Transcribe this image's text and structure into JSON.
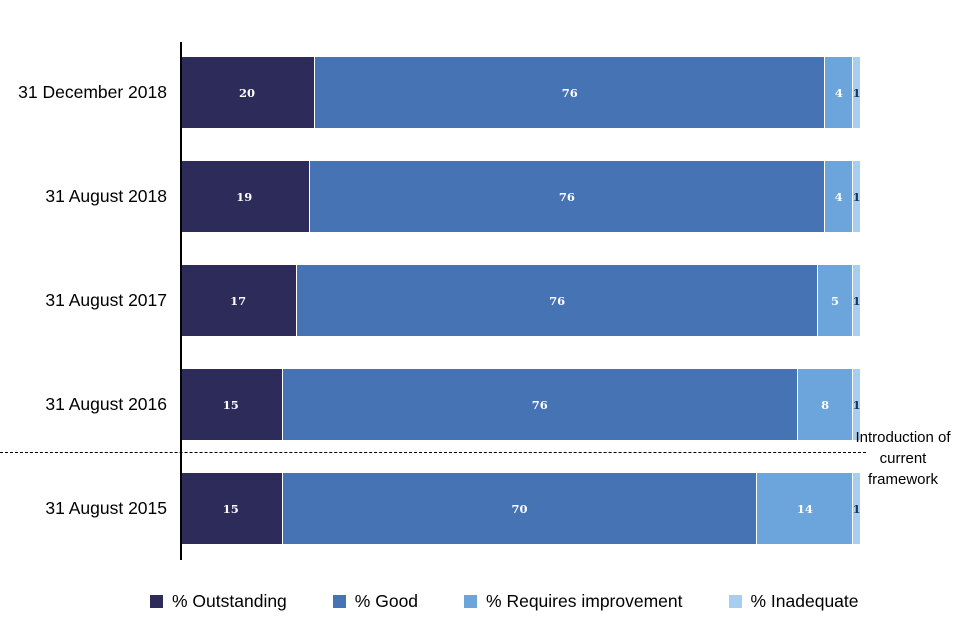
{
  "chart_data": {
    "type": "bar",
    "variant": "stacked-horizontal-100",
    "title": "",
    "xlabel": "",
    "ylabel": "",
    "categories": [
      "31 December 2018",
      "31 August 2018",
      "31 August 2017",
      "31 August 2016",
      "31 August 2015"
    ],
    "series": [
      {
        "name": "% Outstanding",
        "color": "#2D2B5A",
        "value_label_color": "#FFFFFF",
        "values": [
          20,
          19,
          17,
          15,
          15
        ]
      },
      {
        "name": "% Good",
        "color": "#4573B4",
        "value_label_color": "#FFFFFF",
        "values": [
          76,
          76,
          76,
          76,
          70
        ]
      },
      {
        "name": "% Requires improvement",
        "color": "#6BA5DB",
        "value_label_color": "#FFFFFF",
        "values": [
          4,
          4,
          5,
          8,
          14
        ]
      },
      {
        "name": "% Inadequate",
        "color": "#A8CDEE",
        "value_label_color": "#17365D",
        "values": [
          1,
          1,
          1,
          1,
          1
        ]
      }
    ],
    "annotation": {
      "text": "Introduction of current framework",
      "divider_after_category": "31 August 2016",
      "divider_style": "dashed"
    },
    "legend": [
      "% Outstanding",
      "% Good",
      "% Requires improvement",
      "% Inadequate"
    ],
    "legend_position": "bottom",
    "axis": {
      "x_axis_hidden": true,
      "y_axis_line_color": "#000000",
      "grid": false
    }
  }
}
